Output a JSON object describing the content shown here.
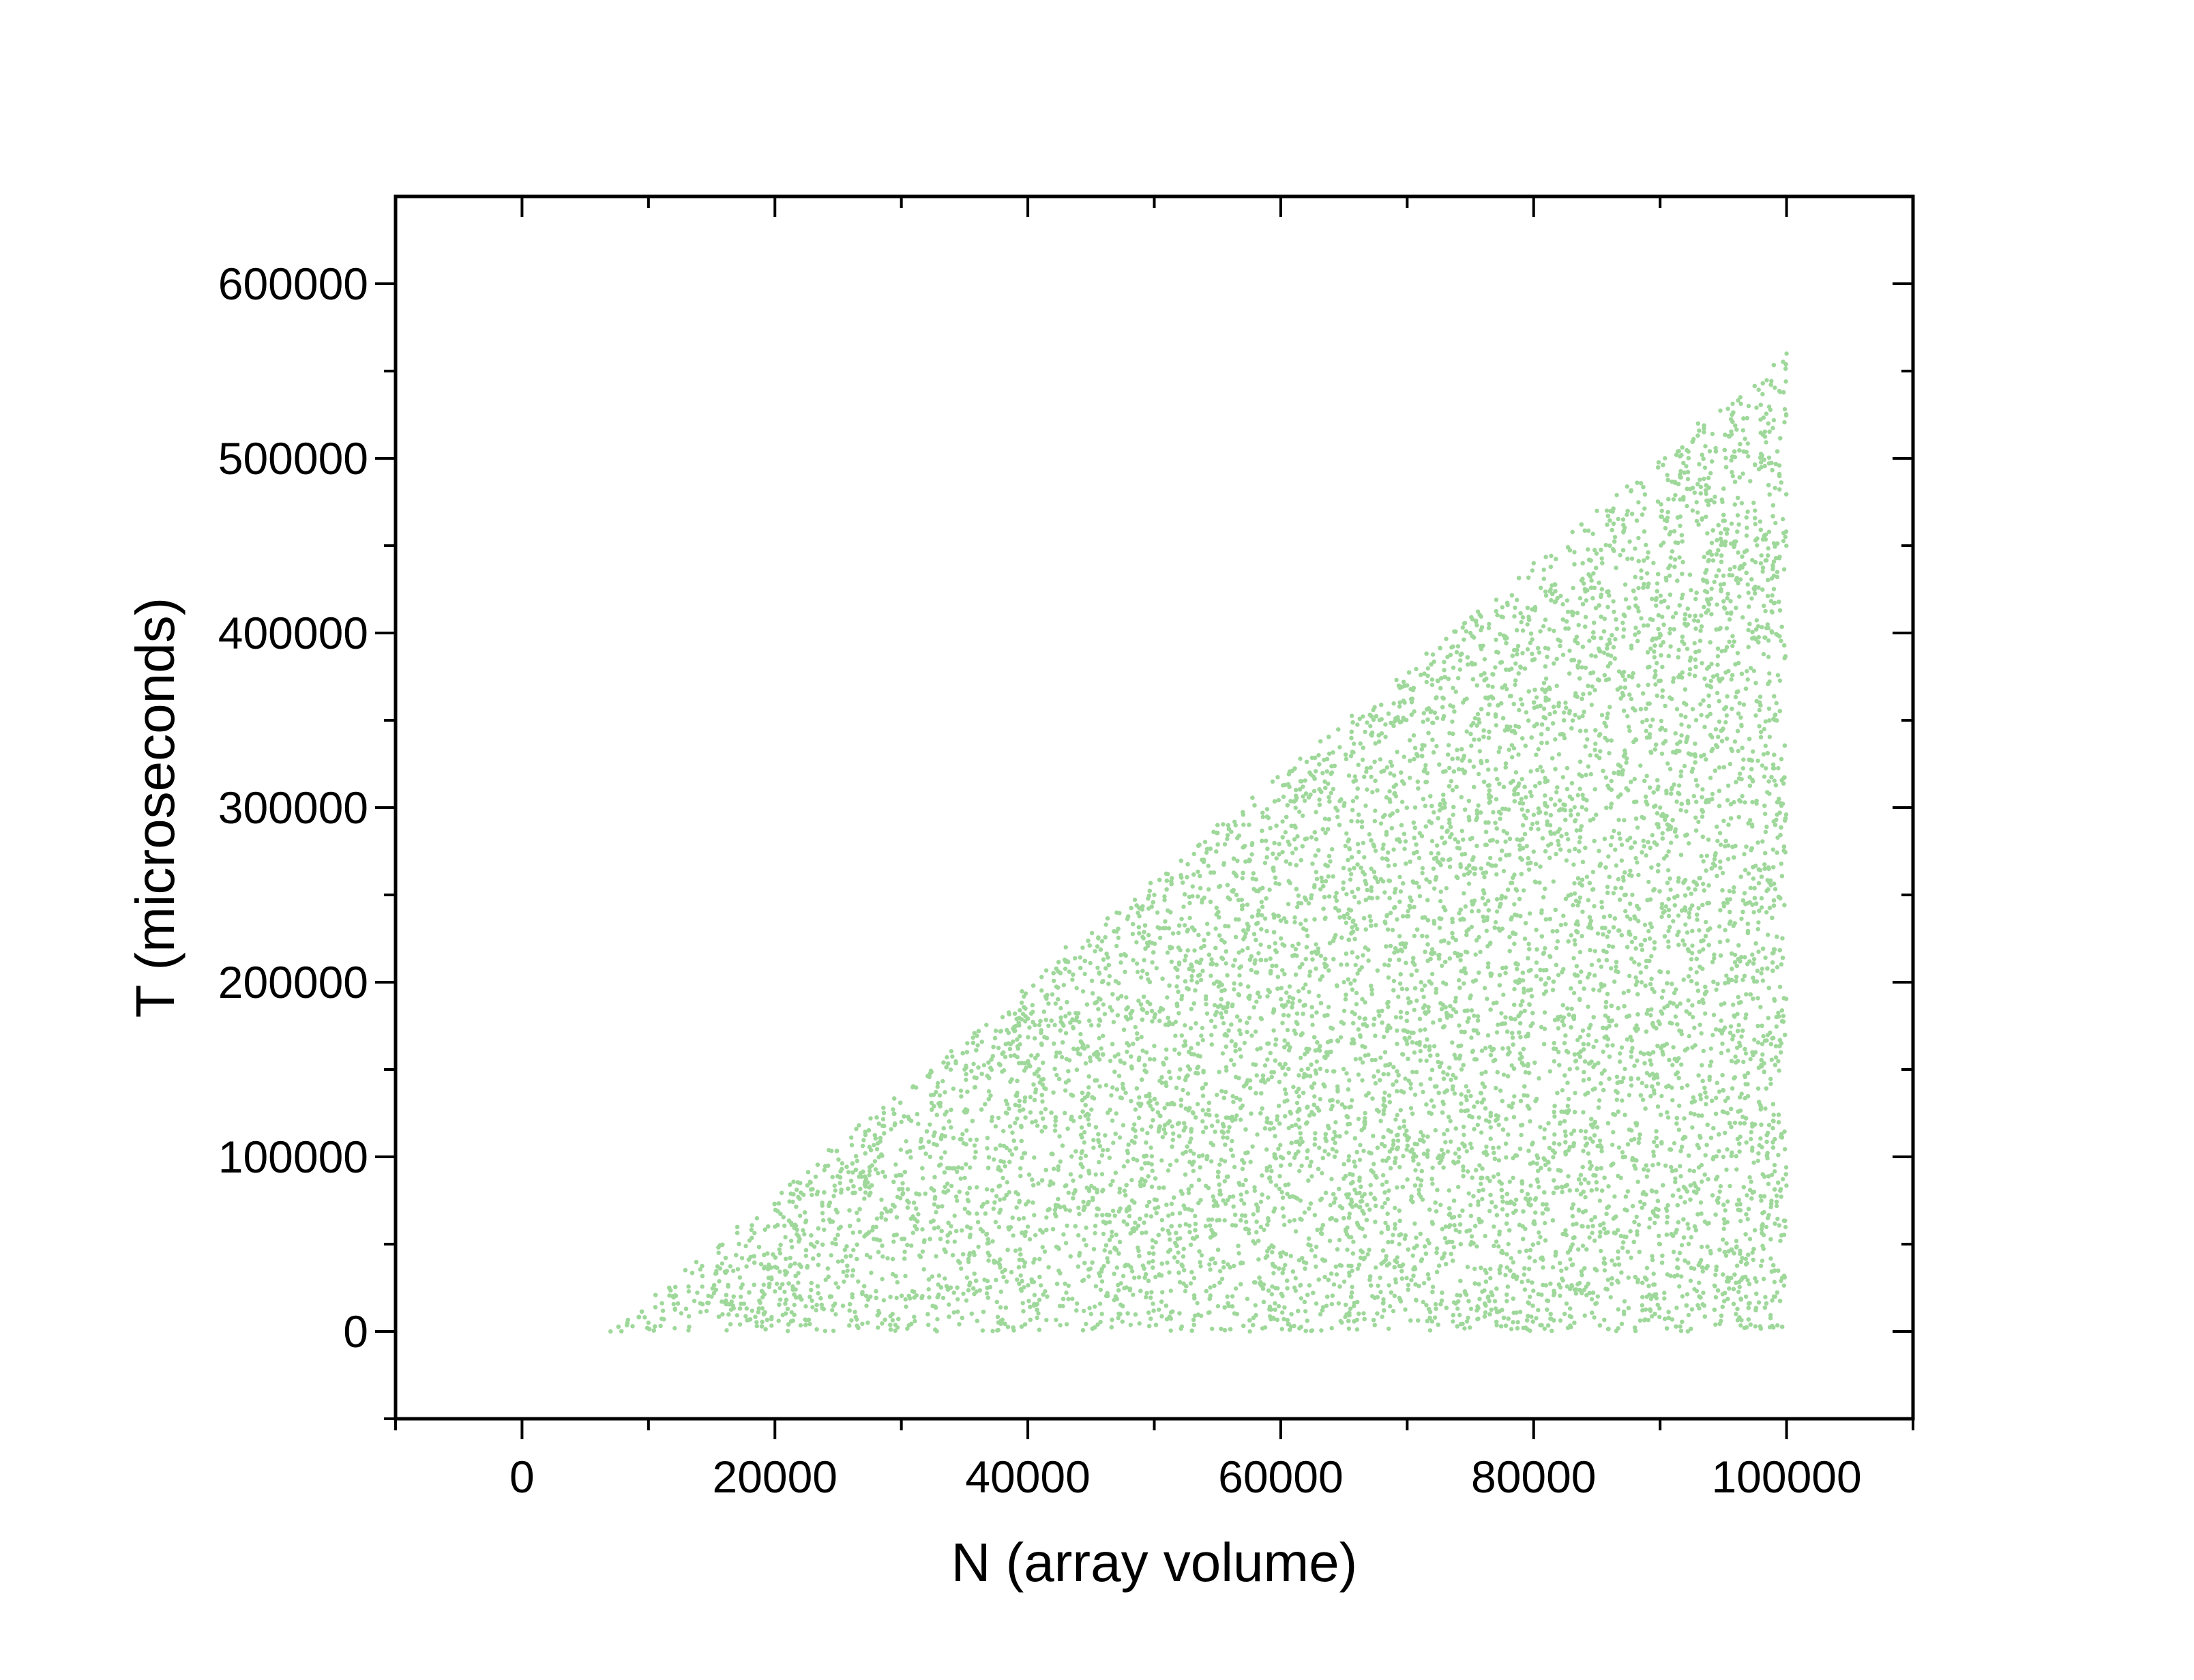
{
  "chart_data": {
    "type": "scatter",
    "xlabel": "N (array volume)",
    "ylabel": "T (microseconds)",
    "xlim": [
      -10000,
      110000
    ],
    "ylim": [
      -50000,
      650000
    ],
    "x_ticks": [
      0,
      20000,
      40000,
      60000,
      80000,
      100000
    ],
    "x_tick_labels": [
      "0",
      "20000",
      "40000",
      "60000",
      "80000",
      "100000"
    ],
    "y_ticks": [
      0,
      100000,
      200000,
      300000,
      400000,
      500000,
      600000
    ],
    "y_tick_labels": [
      "0",
      "100000",
      "200000",
      "300000",
      "400000",
      "500000",
      "600000"
    ],
    "x_minor_ticks": [
      -10000,
      10000,
      30000,
      50000,
      70000,
      90000,
      110000
    ],
    "y_minor_ticks": [
      -50000,
      50000,
      150000,
      250000,
      350000,
      450000,
      550000
    ],
    "grid": false,
    "legend": "none",
    "marker_color": "#9ed89a",
    "series": [
      {
        "distribution": "uniform-random-triangle",
        "point_count": 12000,
        "n_range": [
          7000,
          100000
        ],
        "t_lower_bound": 0,
        "t_upper_bound_at_n": [
          [
            7000,
            0
          ],
          [
            100000,
            560000
          ]
        ],
        "points": [
          [
            7000,
            0
          ],
          [
            10000,
            5000
          ],
          [
            15000,
            20000
          ],
          [
            20000,
            60000
          ],
          [
            22000,
            85000
          ],
          [
            25000,
            40000
          ],
          [
            30000,
            120000
          ],
          [
            35000,
            150000
          ],
          [
            38000,
            180000
          ],
          [
            40000,
            60000
          ],
          [
            43000,
            220000
          ],
          [
            45000,
            10000
          ],
          [
            50000,
            250000
          ],
          [
            55000,
            290000
          ],
          [
            58000,
            15000
          ],
          [
            60000,
            100000
          ],
          [
            63000,
            330000
          ],
          [
            65000,
            200000
          ],
          [
            70000,
            370000
          ],
          [
            73000,
            280000
          ],
          [
            75000,
            400000
          ],
          [
            78000,
            50000
          ],
          [
            80000,
            440000
          ],
          [
            85000,
            470000
          ],
          [
            88000,
            280000
          ],
          [
            90000,
            300000
          ],
          [
            93000,
            520000
          ],
          [
            95000,
            100000
          ],
          [
            97000,
            530000
          ],
          [
            100000,
            560000
          ],
          [
            99000,
            20000
          ],
          [
            96000,
            10000
          ]
        ]
      }
    ]
  }
}
